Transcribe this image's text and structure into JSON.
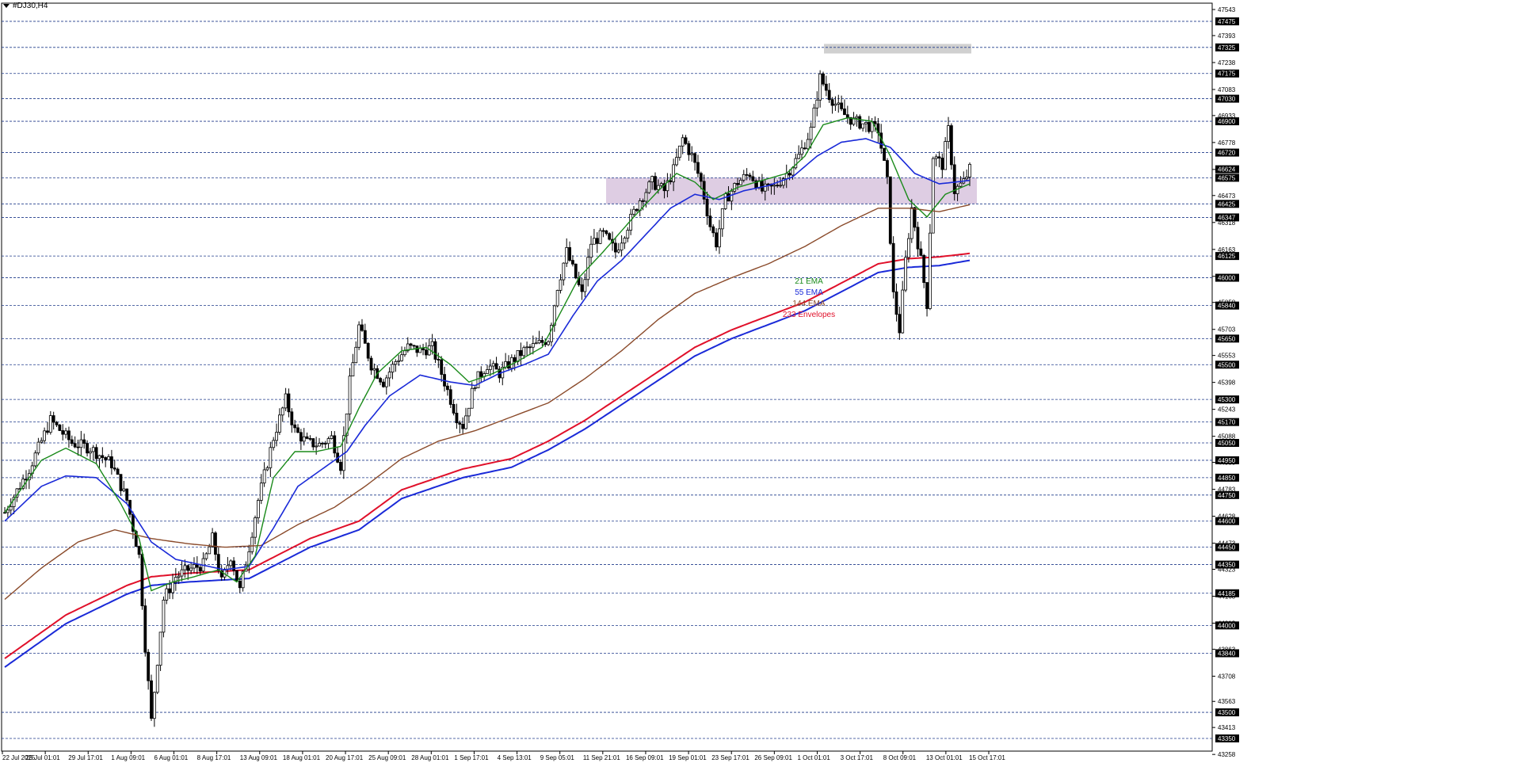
{
  "chart_title": "#DJ30,H4",
  "colors": {
    "grid_dash": "#1f3a8a",
    "candle": "#000000",
    "ema21": "#1a8a1a",
    "ema55": "#1a2ad8",
    "ema144": "#8a4a2a",
    "envelope_upper": "#e0102a",
    "envelope_lower": "#1a2ad8",
    "resistance_zone": "#d8c4de",
    "top_zone": "#d0d0d0",
    "price_tag_bg": "#000000",
    "price_tag_text": "#ffffff"
  },
  "legend": [
    {
      "label": "21 EMA",
      "color": "#1a8a1a"
    },
    {
      "label": "55 EMA",
      "color": "#1a2ad8"
    },
    {
      "label": "144 EMA",
      "color": "#8a4a2a"
    },
    {
      "label": "233 Envelopes",
      "color": "#e0102a"
    }
  ],
  "chart_data": {
    "type": "candlestick",
    "title": "#DJ30,H4",
    "ylim": [
      43277,
      47543
    ],
    "y_axis_scale_ticks": [
      47543,
      47393,
      47238,
      47083,
      46933,
      46778,
      46623,
      46473,
      46318,
      46163,
      46008,
      45858,
      45703,
      45553,
      45398,
      45243,
      45088,
      44938,
      44783,
      44628,
      44473,
      44323,
      44168,
      44013,
      43863,
      43708,
      43563,
      43413,
      43258
    ],
    "level_lines": [
      47475,
      47325,
      47175,
      47030,
      46900,
      46720,
      46575,
      46425,
      46347,
      46125,
      46000,
      45840,
      45650,
      45500,
      45300,
      45170,
      45050,
      44950,
      44850,
      44750,
      44600,
      44450,
      44350,
      44185,
      44000,
      43840,
      43500,
      43350
    ],
    "current_price_tag": 46624,
    "x_tick_labels": [
      "22 Jul 2025",
      "25 Jul 01:01",
      "29 Jul 17:01",
      "1 Aug 09:01",
      "6 Aug 01:01",
      "8 Aug 17:01",
      "13 Aug 09:01",
      "18 Aug 01:01",
      "20 Aug 17:01",
      "25 Aug 09:01",
      "28 Aug 01:01",
      "1 Sep 17:01",
      "4 Sep 13:01",
      "9 Sep 05:01",
      "11 Sep 21:01",
      "16 Sep 09:01",
      "19 Sep 01:01",
      "23 Sep 17:01",
      "26 Sep 09:01",
      "1 Oct 01:01",
      "3 Oct 17:01",
      "8 Oct 09:01",
      "13 Oct 01:01",
      "15 Oct 17:01"
    ],
    "zones": [
      {
        "name": "support-resistance",
        "y_from": 46425,
        "y_to": 46575
      },
      {
        "name": "recent-high",
        "y_from": 47290,
        "y_to": 47345
      }
    ],
    "anchors": [
      [
        0,
        44650
      ],
      [
        8,
        44900
      ],
      [
        15,
        45180
      ],
      [
        22,
        45050
      ],
      [
        28,
        45020
      ],
      [
        35,
        44930
      ],
      [
        40,
        44720
      ],
      [
        44,
        44400
      ],
      [
        46,
        43880
      ],
      [
        48,
        43450
      ],
      [
        52,
        44150
      ],
      [
        56,
        44280
      ],
      [
        60,
        44320
      ],
      [
        65,
        44350
      ],
      [
        68,
        44500
      ],
      [
        71,
        44250
      ],
      [
        74,
        44400
      ],
      [
        77,
        44200
      ],
      [
        80,
        44450
      ],
      [
        83,
        44720
      ],
      [
        88,
        45080
      ],
      [
        92,
        45300
      ],
      [
        95,
        45120
      ],
      [
        99,
        45050
      ],
      [
        103,
        45040
      ],
      [
        107,
        45080
      ],
      [
        110,
        44920
      ],
      [
        113,
        45400
      ],
      [
        116,
        45720
      ],
      [
        120,
        45500
      ],
      [
        124,
        45400
      ],
      [
        128,
        45520
      ],
      [
        132,
        45600
      ],
      [
        136,
        45580
      ],
      [
        140,
        45600
      ],
      [
        145,
        45350
      ],
      [
        148,
        45200
      ],
      [
        150,
        45150
      ],
      [
        154,
        45400
      ],
      [
        158,
        45500
      ],
      [
        162,
        45450
      ],
      [
        166,
        45520
      ],
      [
        170,
        45580
      ],
      [
        175,
        45620
      ],
      [
        178,
        45650
      ],
      [
        181,
        45950
      ],
      [
        184,
        46150
      ],
      [
        187,
        46000
      ],
      [
        189,
        45900
      ],
      [
        192,
        46200
      ],
      [
        196,
        46250
      ],
      [
        200,
        46150
      ],
      [
        204,
        46300
      ],
      [
        208,
        46450
      ],
      [
        212,
        46550
      ],
      [
        216,
        46500
      ],
      [
        219,
        46620
      ],
      [
        222,
        46800
      ],
      [
        225,
        46700
      ],
      [
        228,
        46550
      ],
      [
        231,
        46300
      ],
      [
        233,
        46200
      ],
      [
        236,
        46450
      ],
      [
        240,
        46550
      ],
      [
        244,
        46600
      ],
      [
        248,
        46500
      ],
      [
        252,
        46520
      ],
      [
        256,
        46600
      ],
      [
        260,
        46700
      ],
      [
        264,
        46850
      ],
      [
        267,
        47150
      ],
      [
        270,
        47050
      ],
      [
        274,
        46950
      ],
      [
        278,
        46900
      ],
      [
        282,
        46880
      ],
      [
        286,
        46850
      ],
      [
        289,
        46550
      ],
      [
        291,
        45900
      ],
      [
        293,
        45700
      ],
      [
        295,
        46100
      ],
      [
        297,
        46400
      ],
      [
        300,
        46100
      ],
      [
        302,
        45850
      ],
      [
        304,
        46700
      ],
      [
        307,
        46650
      ],
      [
        309,
        46850
      ],
      [
        311,
        46500
      ],
      [
        314,
        46550
      ],
      [
        316,
        46624
      ]
    ],
    "ema_anchors": {
      "ema21": [
        [
          0,
          44650
        ],
        [
          12,
          44950
        ],
        [
          20,
          45020
        ],
        [
          30,
          44930
        ],
        [
          38,
          44700
        ],
        [
          44,
          44500
        ],
        [
          48,
          44200
        ],
        [
          55,
          44250
        ],
        [
          62,
          44280
        ],
        [
          70,
          44320
        ],
        [
          76,
          44250
        ],
        [
          82,
          44400
        ],
        [
          88,
          44850
        ],
        [
          95,
          45000
        ],
        [
          102,
          45000
        ],
        [
          110,
          45030
        ],
        [
          116,
          45250
        ],
        [
          122,
          45450
        ],
        [
          130,
          45580
        ],
        [
          138,
          45600
        ],
        [
          146,
          45500
        ],
        [
          152,
          45400
        ],
        [
          160,
          45450
        ],
        [
          168,
          45520
        ],
        [
          176,
          45600
        ],
        [
          182,
          45800
        ],
        [
          188,
          46000
        ],
        [
          196,
          46150
        ],
        [
          206,
          46350
        ],
        [
          214,
          46500
        ],
        [
          220,
          46600
        ],
        [
          226,
          46550
        ],
        [
          232,
          46450
        ],
        [
          240,
          46520
        ],
        [
          248,
          46560
        ],
        [
          256,
          46600
        ],
        [
          262,
          46700
        ],
        [
          268,
          46880
        ],
        [
          276,
          46920
        ],
        [
          284,
          46900
        ],
        [
          290,
          46700
        ],
        [
          296,
          46450
        ],
        [
          302,
          46350
        ],
        [
          308,
          46480
        ],
        [
          316,
          46540
        ]
      ],
      "ema55": [
        [
          0,
          44600
        ],
        [
          12,
          44800
        ],
        [
          20,
          44860
        ],
        [
          30,
          44850
        ],
        [
          40,
          44700
        ],
        [
          48,
          44480
        ],
        [
          56,
          44380
        ],
        [
          64,
          44350
        ],
        [
          72,
          44320
        ],
        [
          80,
          44340
        ],
        [
          88,
          44560
        ],
        [
          96,
          44800
        ],
        [
          104,
          44900
        ],
        [
          112,
          45000
        ],
        [
          118,
          45150
        ],
        [
          126,
          45320
        ],
        [
          136,
          45440
        ],
        [
          146,
          45400
        ],
        [
          154,
          45380
        ],
        [
          162,
          45450
        ],
        [
          170,
          45500
        ],
        [
          178,
          45560
        ],
        [
          186,
          45780
        ],
        [
          194,
          45980
        ],
        [
          202,
          46100
        ],
        [
          210,
          46250
        ],
        [
          218,
          46400
        ],
        [
          226,
          46480
        ],
        [
          234,
          46450
        ],
        [
          242,
          46500
        ],
        [
          250,
          46530
        ],
        [
          258,
          46580
        ],
        [
          266,
          46700
        ],
        [
          274,
          46780
        ],
        [
          282,
          46800
        ],
        [
          290,
          46750
        ],
        [
          298,
          46600
        ],
        [
          306,
          46540
        ],
        [
          316,
          46560
        ]
      ],
      "ema144": [
        [
          0,
          44150
        ],
        [
          12,
          44330
        ],
        [
          24,
          44480
        ],
        [
          36,
          44550
        ],
        [
          48,
          44500
        ],
        [
          60,
          44470
        ],
        [
          72,
          44450
        ],
        [
          84,
          44460
        ],
        [
          96,
          44580
        ],
        [
          108,
          44680
        ],
        [
          118,
          44800
        ],
        [
          130,
          44960
        ],
        [
          142,
          45060
        ],
        [
          154,
          45120
        ],
        [
          166,
          45200
        ],
        [
          178,
          45280
        ],
        [
          190,
          45420
        ],
        [
          202,
          45580
        ],
        [
          214,
          45760
        ],
        [
          226,
          45910
        ],
        [
          238,
          46000
        ],
        [
          250,
          46080
        ],
        [
          262,
          46180
        ],
        [
          274,
          46300
        ],
        [
          286,
          46400
        ],
        [
          296,
          46400
        ],
        [
          306,
          46380
        ],
        [
          316,
          46420
        ]
      ],
      "envelope_upper": [
        [
          0,
          43810
        ],
        [
          20,
          44060
        ],
        [
          40,
          44230
        ],
        [
          48,
          44280
        ],
        [
          60,
          44300
        ],
        [
          80,
          44320
        ],
        [
          100,
          44500
        ],
        [
          116,
          44600
        ],
        [
          130,
          44780
        ],
        [
          150,
          44900
        ],
        [
          166,
          44960
        ],
        [
          178,
          45060
        ],
        [
          190,
          45180
        ],
        [
          202,
          45320
        ],
        [
          214,
          45460
        ],
        [
          226,
          45600
        ],
        [
          238,
          45700
        ],
        [
          250,
          45780
        ],
        [
          262,
          45860
        ],
        [
          274,
          45970
        ],
        [
          286,
          46080
        ],
        [
          296,
          46110
        ],
        [
          306,
          46120
        ],
        [
          316,
          46140
        ]
      ],
      "envelope_lower": [
        [
          0,
          43760
        ],
        [
          20,
          44010
        ],
        [
          40,
          44180
        ],
        [
          48,
          44230
        ],
        [
          60,
          44250
        ],
        [
          80,
          44270
        ],
        [
          100,
          44450
        ],
        [
          116,
          44550
        ],
        [
          130,
          44730
        ],
        [
          150,
          44850
        ],
        [
          166,
          44910
        ],
        [
          178,
          45010
        ],
        [
          190,
          45130
        ],
        [
          202,
          45270
        ],
        [
          214,
          45410
        ],
        [
          226,
          45550
        ],
        [
          238,
          45650
        ],
        [
          250,
          45730
        ],
        [
          262,
          45810
        ],
        [
          274,
          45920
        ],
        [
          286,
          46030
        ],
        [
          296,
          46060
        ],
        [
          306,
          46070
        ],
        [
          316,
          46100
        ]
      ]
    },
    "candle_count": 317
  }
}
